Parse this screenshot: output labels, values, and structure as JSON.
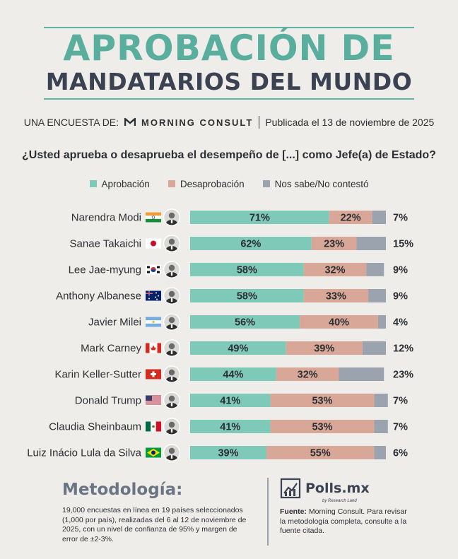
{
  "header": {
    "title_line1": "APROBACIÓN DE",
    "title_line2": "MANDATARIOS DEL MUNDO",
    "byline_prefix": "UNA ENCUESTA DE:",
    "brand": "MORNING CONSULT",
    "published": "Publicada el 13 de noviembre de 2025"
  },
  "colors": {
    "approval": "#7ec9b8",
    "disapproval": "#d9a797",
    "no_answer": "#9aa3ae",
    "title_accent": "#5aae9e",
    "title_dark": "#3b4353"
  },
  "chart_data": {
    "type": "bar",
    "orientation": "horizontal",
    "stacked": true,
    "title": "¿Usted aprueba o desaprueba el desempeño de [...] como Jefe(a) de Estado?",
    "legend_position": "top",
    "categories": [
      "Narendra Modi",
      "Sanae Takaichi",
      "Lee Jae-myung",
      "Anthony Albanese",
      "Javier Milei",
      "Mark Carney",
      "Karin Keller-Sutter",
      "Donald Trump",
      "Claudia Sheinbaum",
      "Luiz Inácio Lula da Silva"
    ],
    "flags": [
      "india",
      "japan",
      "south-korea",
      "australia",
      "argentina",
      "canada",
      "switzerland",
      "usa",
      "mexico",
      "brazil"
    ],
    "series": [
      {
        "name": "Aprobación",
        "values": [
          71,
          62,
          58,
          58,
          56,
          49,
          44,
          41,
          41,
          39
        ]
      },
      {
        "name": "Desaprobación",
        "values": [
          22,
          23,
          32,
          33,
          40,
          39,
          32,
          53,
          53,
          55
        ]
      },
      {
        "name": "Nos sabe/No contestó",
        "values": [
          7,
          15,
          9,
          9,
          4,
          12,
          23,
          7,
          7,
          6
        ]
      }
    ],
    "value_suffix": "%",
    "xlim": [
      0,
      100
    ]
  },
  "methodology": {
    "title": "Metodología:",
    "text": "19,000 encuestas en línea en 19 países seleccionados (1,000 por país), realizadas del 6 al 12 de noviembre de 2025, con un nivel de confianza de 95% y margen de error de ±2-3%."
  },
  "branding": {
    "name": "Polls.mx",
    "sub": "by Research Land"
  },
  "source": {
    "label": "Fuente:",
    "text": " Morning Consult. Para revisar la metodología completa, consulte a la fuente citada."
  }
}
